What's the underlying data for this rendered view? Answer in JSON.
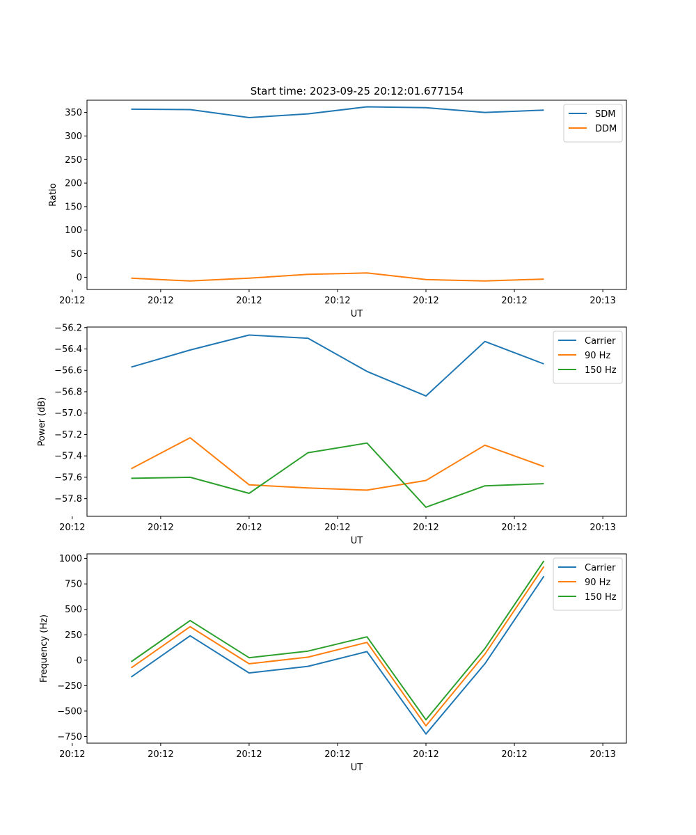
{
  "figure": {
    "title": "Start time: 2023-09-25 20:12:01.677154"
  },
  "colors": {
    "blue": "#1f77b4",
    "orange": "#ff7f0e",
    "green": "#2ca02c"
  },
  "chart_data": [
    {
      "type": "line",
      "title": "Start time: 2023-09-25 20:12:01.677154",
      "xlabel": "UT",
      "ylabel": "Ratio",
      "x": [
        1,
        2,
        3,
        4,
        5,
        6,
        7,
        8
      ],
      "xlim": [
        0.25,
        9.4
      ],
      "xticks": [
        {
          "x": 0.0,
          "label": "20:12"
        },
        {
          "x": 1.5,
          "label": "20:12"
        },
        {
          "x": 3.0,
          "label": "20:12"
        },
        {
          "x": 4.5,
          "label": "20:12"
        },
        {
          "x": 6.0,
          "label": "20:12"
        },
        {
          "x": 7.5,
          "label": "20:12"
        },
        {
          "x": 9.0,
          "label": "20:13"
        }
      ],
      "ylim": [
        -26,
        376
      ],
      "yticks": [
        0,
        50,
        100,
        150,
        200,
        250,
        300,
        350
      ],
      "legend": "top-right",
      "series": [
        {
          "name": "SDM",
          "color": "#1f77b4",
          "values": [
            357,
            356,
            339,
            347,
            362,
            360,
            350,
            355
          ]
        },
        {
          "name": "DDM",
          "color": "#ff7f0e",
          "values": [
            -2,
            -8,
            -2,
            6,
            9,
            -5,
            -8,
            -4
          ]
        }
      ]
    },
    {
      "type": "line",
      "title": "",
      "xlabel": "UT",
      "ylabel": "Power (dB)",
      "x": [
        1,
        2,
        3,
        4,
        5,
        6,
        7,
        8
      ],
      "xlim": [
        0.25,
        9.4
      ],
      "xticks": [
        {
          "x": 0.0,
          "label": "20:12"
        },
        {
          "x": 1.5,
          "label": "20:12"
        },
        {
          "x": 3.0,
          "label": "20:12"
        },
        {
          "x": 4.5,
          "label": "20:12"
        },
        {
          "x": 6.0,
          "label": "20:12"
        },
        {
          "x": 7.5,
          "label": "20:12"
        },
        {
          "x": 9.0,
          "label": "20:13"
        }
      ],
      "ylim": [
        -57.965,
        -56.195
      ],
      "yticks": [
        -57.8,
        -57.6,
        -57.4,
        -57.2,
        -57.0,
        -56.8,
        -56.6,
        -56.4,
        -56.2
      ],
      "ytick_labels": [
        "−57.8",
        "−57.6",
        "−57.4",
        "−57.2",
        "−57.0",
        "−56.8",
        "−56.6",
        "−56.4",
        "−56.2"
      ],
      "legend": "top-right",
      "series": [
        {
          "name": "Carrier",
          "color": "#1f77b4",
          "values": [
            -56.57,
            -56.41,
            -56.27,
            -56.3,
            -56.61,
            -56.84,
            -56.33,
            -56.54
          ]
        },
        {
          "name": "90 Hz",
          "color": "#ff7f0e",
          "values": [
            -57.52,
            -57.23,
            -57.67,
            -57.7,
            -57.72,
            -57.63,
            -57.3,
            -57.5
          ]
        },
        {
          "name": "150 Hz",
          "color": "#2ca02c",
          "values": [
            -57.61,
            -57.6,
            -57.75,
            -57.37,
            -57.28,
            -57.88,
            -57.68,
            -57.66
          ]
        }
      ]
    },
    {
      "type": "line",
      "title": "",
      "xlabel": "UT",
      "ylabel": "Frequency (Hz)",
      "x": [
        1,
        2,
        3,
        4,
        5,
        6,
        7,
        8
      ],
      "xlim": [
        0.25,
        9.4
      ],
      "xticks": [
        {
          "x": 0.0,
          "label": "20:12"
        },
        {
          "x": 1.5,
          "label": "20:12"
        },
        {
          "x": 3.0,
          "label": "20:12"
        },
        {
          "x": 4.5,
          "label": "20:12"
        },
        {
          "x": 6.0,
          "label": "20:12"
        },
        {
          "x": 7.5,
          "label": "20:12"
        },
        {
          "x": 9.0,
          "label": "20:13"
        }
      ],
      "ylim": [
        -815,
        1045
      ],
      "yticks": [
        -750,
        -500,
        -250,
        0,
        250,
        500,
        750,
        1000
      ],
      "ytick_labels": [
        "−750",
        "−500",
        "−250",
        "0",
        "250",
        "500",
        "750",
        "1000"
      ],
      "legend": "top-right",
      "series": [
        {
          "name": "Carrier",
          "color": "#1f77b4",
          "values": [
            -165,
            240,
            -125,
            -60,
            85,
            -725,
            -35,
            825
          ]
        },
        {
          "name": "90 Hz",
          "color": "#ff7f0e",
          "values": [
            -75,
            330,
            -35,
            30,
            175,
            -645,
            60,
            920
          ]
        },
        {
          "name": "150 Hz",
          "color": "#2ca02c",
          "values": [
            -15,
            390,
            25,
            90,
            230,
            -585,
            115,
            975
          ]
        }
      ]
    }
  ]
}
